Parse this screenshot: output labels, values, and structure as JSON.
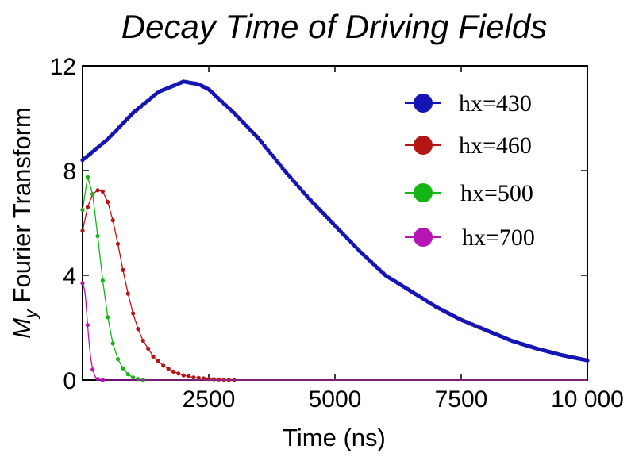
{
  "chart_data": {
    "type": "line",
    "title": "Decay Time of Driving Fields",
    "xlabel": "Time (ns)",
    "ylabel_main": "M",
    "ylabel_sub": "y",
    "ylabel_rest": " Fourier Transform",
    "xlim": [
      0,
      10000
    ],
    "ylim": [
      0,
      12
    ],
    "x_ticks": [
      2500,
      5000,
      7500,
      10000
    ],
    "x_tick_labels": [
      "2500",
      "5000",
      "7500",
      "10 000"
    ],
    "y_ticks": [
      0,
      4,
      8,
      12
    ],
    "y_tick_labels": [
      "0",
      "4",
      "8",
      "12"
    ],
    "grid": false,
    "legend_position": "top-right",
    "series": [
      {
        "name": "hx=430",
        "color": "#1515b5",
        "x": [
          0,
          500,
          1000,
          1500,
          2000,
          2300,
          2500,
          3000,
          3500,
          4000,
          4500,
          5000,
          5500,
          6000,
          6500,
          7000,
          7500,
          8000,
          8500,
          9000,
          9500,
          10000
        ],
        "y": [
          8.4,
          9.2,
          10.2,
          11.0,
          11.4,
          11.3,
          11.1,
          10.2,
          9.2,
          8.0,
          6.9,
          5.9,
          4.9,
          4.0,
          3.4,
          2.8,
          2.3,
          1.9,
          1.5,
          1.2,
          0.95,
          0.75
        ]
      },
      {
        "name": "hx=460",
        "color": "#b51515",
        "x": [
          0,
          100,
          200,
          300,
          400,
          500,
          600,
          700,
          800,
          900,
          1000,
          1100,
          1200,
          1400,
          1600,
          1800,
          2000,
          2200,
          2500,
          2800,
          3000
        ],
        "y": [
          5.7,
          6.6,
          7.1,
          7.25,
          7.2,
          6.8,
          6.1,
          5.2,
          4.2,
          3.3,
          2.55,
          1.95,
          1.5,
          0.9,
          0.55,
          0.32,
          0.18,
          0.1,
          0.04,
          0.01,
          0.0
        ],
        "dots_until": 3000
      },
      {
        "name": "hx=500",
        "color": "#15b515",
        "x": [
          0,
          100,
          200,
          300,
          400,
          500,
          600,
          700,
          800,
          900,
          1000,
          1100,
          1200
        ],
        "y": [
          6.5,
          7.75,
          7.1,
          5.5,
          3.8,
          2.4,
          1.4,
          0.8,
          0.45,
          0.22,
          0.1,
          0.04,
          0.0
        ],
        "dots_until": 1200
      },
      {
        "name": "hx=700",
        "color": "#b515b5",
        "x": [
          0,
          50,
          100,
          150,
          200,
          250,
          300,
          350,
          400
        ],
        "y": [
          3.7,
          3.4,
          2.1,
          1.0,
          0.4,
          0.12,
          0.04,
          0.01,
          0.0
        ],
        "dots_until": 400
      }
    ]
  }
}
